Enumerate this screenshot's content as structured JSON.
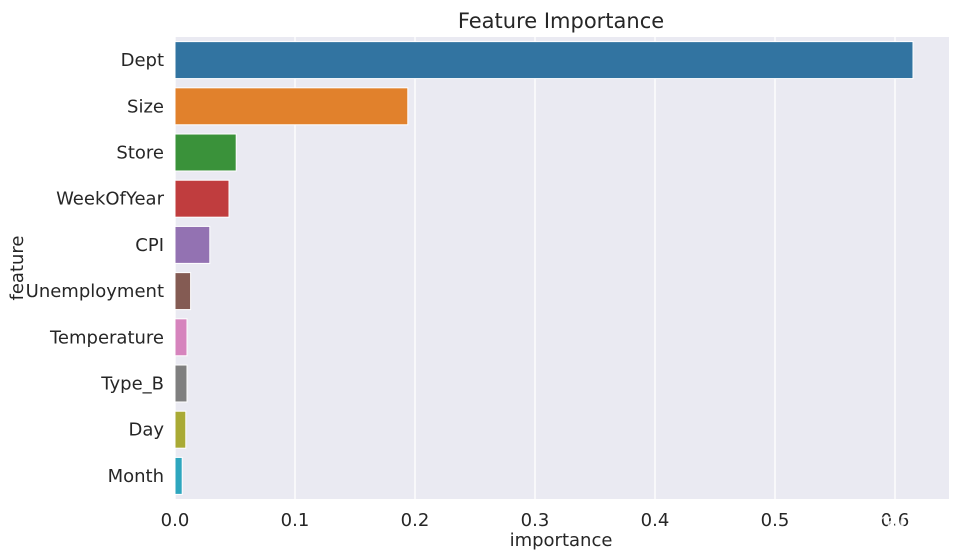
{
  "chart_data": {
    "type": "bar",
    "orientation": "horizontal",
    "title": "Feature Importance",
    "xlabel": "importance",
    "ylabel": "feature",
    "xlim": [
      0,
      0.645
    ],
    "xticks": [
      0.0,
      0.1,
      0.2,
      0.3,
      0.4,
      0.5,
      0.6
    ],
    "xtick_labels": [
      "0.0",
      "0.1",
      "0.2",
      "0.3",
      "0.4",
      "0.5",
      "0.6"
    ],
    "grid": true,
    "background": "#eaeaf2",
    "categories": [
      "Dept",
      "Size",
      "Store",
      "WeekOfYear",
      "CPI",
      "Unemployment",
      "Temperature",
      "Type_B",
      "Day",
      "Month"
    ],
    "values": [
      0.615,
      0.194,
      0.051,
      0.045,
      0.029,
      0.013,
      0.01,
      0.01,
      0.009,
      0.006
    ],
    "colors": [
      "#3274a1",
      "#e1812c",
      "#3a923a",
      "#c03d3e",
      "#9372b2",
      "#845b53",
      "#d684bd",
      "#7f7f7f",
      "#a9aa35",
      "#2ea6be"
    ]
  },
  "watermark": {
    "icon": "wechat-icon",
    "text": "alitrack"
  }
}
